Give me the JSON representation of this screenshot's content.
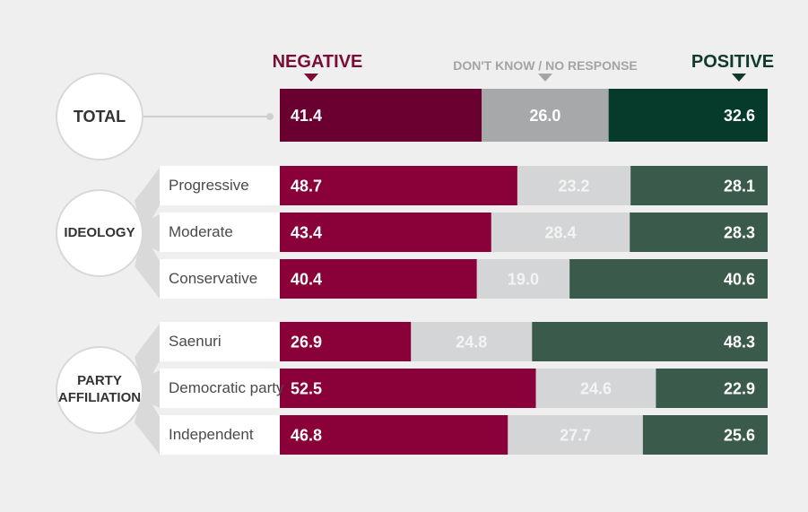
{
  "headers": {
    "negative": "NEGATIVE",
    "dont_know": "DON'T KNOW / NO RESPONSE",
    "positive": "POSITIVE"
  },
  "groups": {
    "total": "TOTAL",
    "ideology": "IDEOLOGY",
    "party_line1": "PARTY",
    "party_line2": "AFFILIATION"
  },
  "row_labels": {
    "progressive": "Progressive",
    "moderate": "Moderate",
    "conservative": "Conservative",
    "saenuri": "Saenuri",
    "democratic": "Democratic party",
    "independent": "Independent"
  },
  "colors": {
    "negative_total": "#6a0030",
    "negative": "#8a0038",
    "dont_know_total": "#a7a8aa",
    "dont_know": "#d4d5d6",
    "positive_total": "#063b2c",
    "positive": "#3a5a4c",
    "dk_text_total": "#ffffff",
    "dk_text": "#f4f4f4"
  },
  "chart_data": {
    "type": "bar",
    "stacked": true,
    "orientation": "horizontal",
    "categories": [
      "TOTAL",
      "Progressive",
      "Moderate",
      "Conservative",
      "Saenuri",
      "Democratic party",
      "Independent"
    ],
    "series": [
      {
        "name": "NEGATIVE",
        "values": [
          41.4,
          48.7,
          43.4,
          40.4,
          26.9,
          52.5,
          46.8
        ]
      },
      {
        "name": "DON'T KNOW / NO RESPONSE",
        "values": [
          26.0,
          23.2,
          28.4,
          19.0,
          24.8,
          24.6,
          27.7
        ]
      },
      {
        "name": "POSITIVE",
        "values": [
          32.6,
          28.1,
          28.3,
          40.6,
          48.3,
          22.9,
          25.6
        ]
      }
    ]
  }
}
